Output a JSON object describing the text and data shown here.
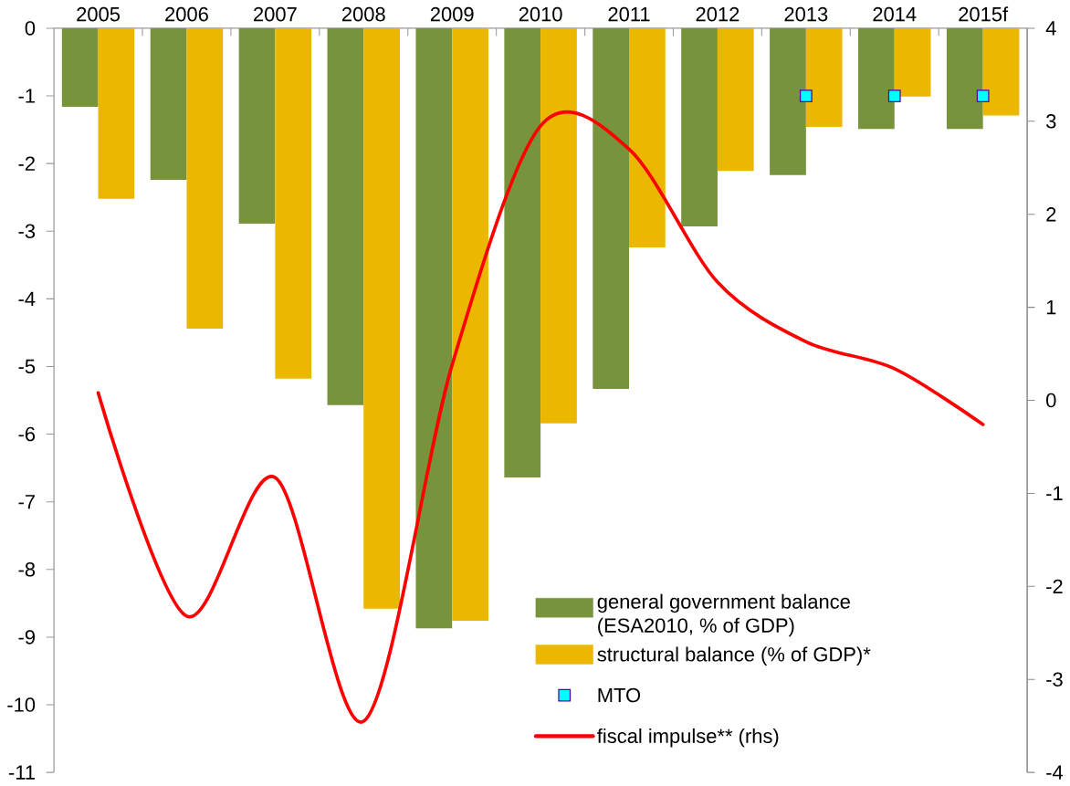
{
  "chart_data": {
    "type": "bar",
    "categories": [
      "2005",
      "2006",
      "2007",
      "2008",
      "2009",
      "2010",
      "2011",
      "2012",
      "2013",
      "2014",
      "2015f"
    ],
    "series": [
      {
        "name": "general government balance (ESA2010, % of GDP)",
        "color": "#77933c",
        "values": [
          -1.16,
          -2.24,
          -2.89,
          -5.57,
          -8.87,
          -6.64,
          -5.33,
          -2.93,
          -2.17,
          -1.49,
          -1.49
        ]
      },
      {
        "name": "structural balance (% of GDP)*",
        "color": "#ebb700",
        "values": [
          -2.52,
          -4.44,
          -5.18,
          -8.58,
          -8.76,
          -5.84,
          -3.24,
          -2.11,
          -1.46,
          -1.01,
          -1.29
        ]
      },
      {
        "name": "MTO",
        "type": "scatter",
        "marker": "square",
        "color": "#00ffff",
        "values": [
          null,
          null,
          null,
          null,
          null,
          null,
          null,
          null,
          -1,
          -1,
          -1
        ]
      },
      {
        "name": "fiscal impulse** (rhs)",
        "type": "line",
        "axis": "y2",
        "color": "#ff0000",
        "values": [
          0.08,
          -2.32,
          -0.83,
          -3.45,
          0.38,
          2.95,
          2.7,
          1.27,
          0.63,
          0.34,
          -0.26
        ]
      }
    ],
    "ylim": [
      -11,
      0
    ],
    "yticks": [
      0,
      -1,
      -2,
      -3,
      -4,
      -5,
      -6,
      -7,
      -8,
      -9,
      -10,
      -11
    ],
    "y2lim": [
      -4,
      4
    ],
    "y2ticks": [
      4,
      3,
      2,
      1,
      0,
      -1,
      -2,
      -3,
      -4
    ],
    "legend": "bottom right"
  }
}
